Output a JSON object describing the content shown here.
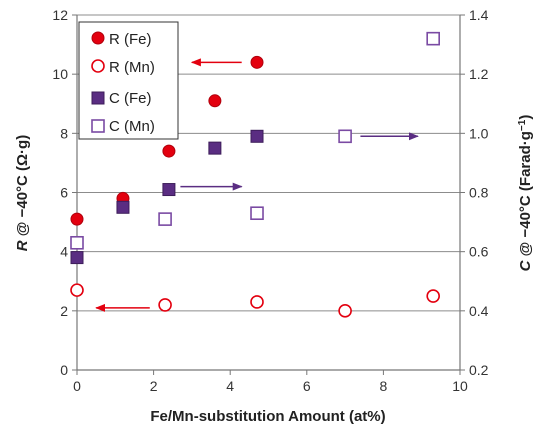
{
  "chart_data": {
    "type": "scatter",
    "title": "",
    "x_axis": {
      "label": "Fe/Mn-substitution Amount (at%)",
      "range": [
        0,
        10
      ],
      "ticks": [
        0,
        2,
        4,
        6,
        8,
        10
      ]
    },
    "y_left": {
      "label_bold_italic": "R",
      "label_rest": " @ −40°C (Ω·g)",
      "range": [
        0,
        12
      ],
      "ticks": [
        0,
        2,
        4,
        6,
        8,
        10,
        12
      ]
    },
    "y_right": {
      "label_bold_italic": "C",
      "label_rest": " @ −40°C (Farad·g",
      "label_sup": "−1",
      "label_close": ")",
      "range": [
        0.2,
        1.4
      ],
      "ticks": [
        "0.2",
        "0.4",
        "0.6",
        "0.8",
        "1.0",
        "1.2",
        "1.4"
      ],
      "tick_values": [
        0.2,
        0.4,
        0.6,
        0.8,
        1.0,
        1.2,
        1.4
      ]
    },
    "grid": true,
    "legend_position": "top-left",
    "series": [
      {
        "name": "R (Fe)",
        "axis": "left",
        "marker": "circle",
        "filled": true,
        "color": "#e3000f",
        "x": [
          0,
          1.2,
          2.4,
          3.6,
          4.7
        ],
        "y": [
          5.1,
          5.8,
          7.4,
          9.1,
          10.4
        ]
      },
      {
        "name": "R (Mn)",
        "axis": "left",
        "marker": "circle",
        "filled": false,
        "color": "#e3000f",
        "x": [
          0,
          2.3,
          4.7,
          7.0,
          9.3
        ],
        "y": [
          2.7,
          2.2,
          2.3,
          2.0,
          2.5
        ]
      },
      {
        "name": "C (Fe)",
        "axis": "right",
        "marker": "square",
        "filled": true,
        "color": "#5a2d82",
        "x": [
          0,
          1.2,
          2.4,
          3.6,
          4.7
        ],
        "y": [
          0.58,
          0.75,
          0.81,
          0.95,
          0.99
        ]
      },
      {
        "name": "C (Mn)",
        "axis": "right",
        "marker": "square",
        "filled": false,
        "color": "#7a4aa3",
        "x": [
          0,
          2.3,
          4.7,
          7.0,
          9.3
        ],
        "y": [
          0.63,
          0.71,
          0.73,
          0.99,
          1.32
        ]
      }
    ],
    "annotations": [
      {
        "type": "arrow",
        "direction": "left",
        "color": "#e3000f",
        "series": "R (Fe)",
        "y_axis": "left",
        "y": 10.4,
        "x_from": 4.3,
        "x_to": 3.0
      },
      {
        "type": "arrow",
        "direction": "left",
        "color": "#e3000f",
        "series": "R (Mn)",
        "y_axis": "left",
        "y": 2.1,
        "x_from": 1.9,
        "x_to": 0.5
      },
      {
        "type": "arrow",
        "direction": "right",
        "color": "#5a2d82",
        "series": "C (Fe)",
        "y_axis": "right",
        "y": 0.82,
        "x_from": 2.7,
        "x_to": 4.3
      },
      {
        "type": "arrow",
        "direction": "right",
        "color": "#5a2d82",
        "series": "C (Mn)",
        "y_axis": "right",
        "y": 0.99,
        "x_from": 7.4,
        "x_to": 8.9
      }
    ]
  }
}
